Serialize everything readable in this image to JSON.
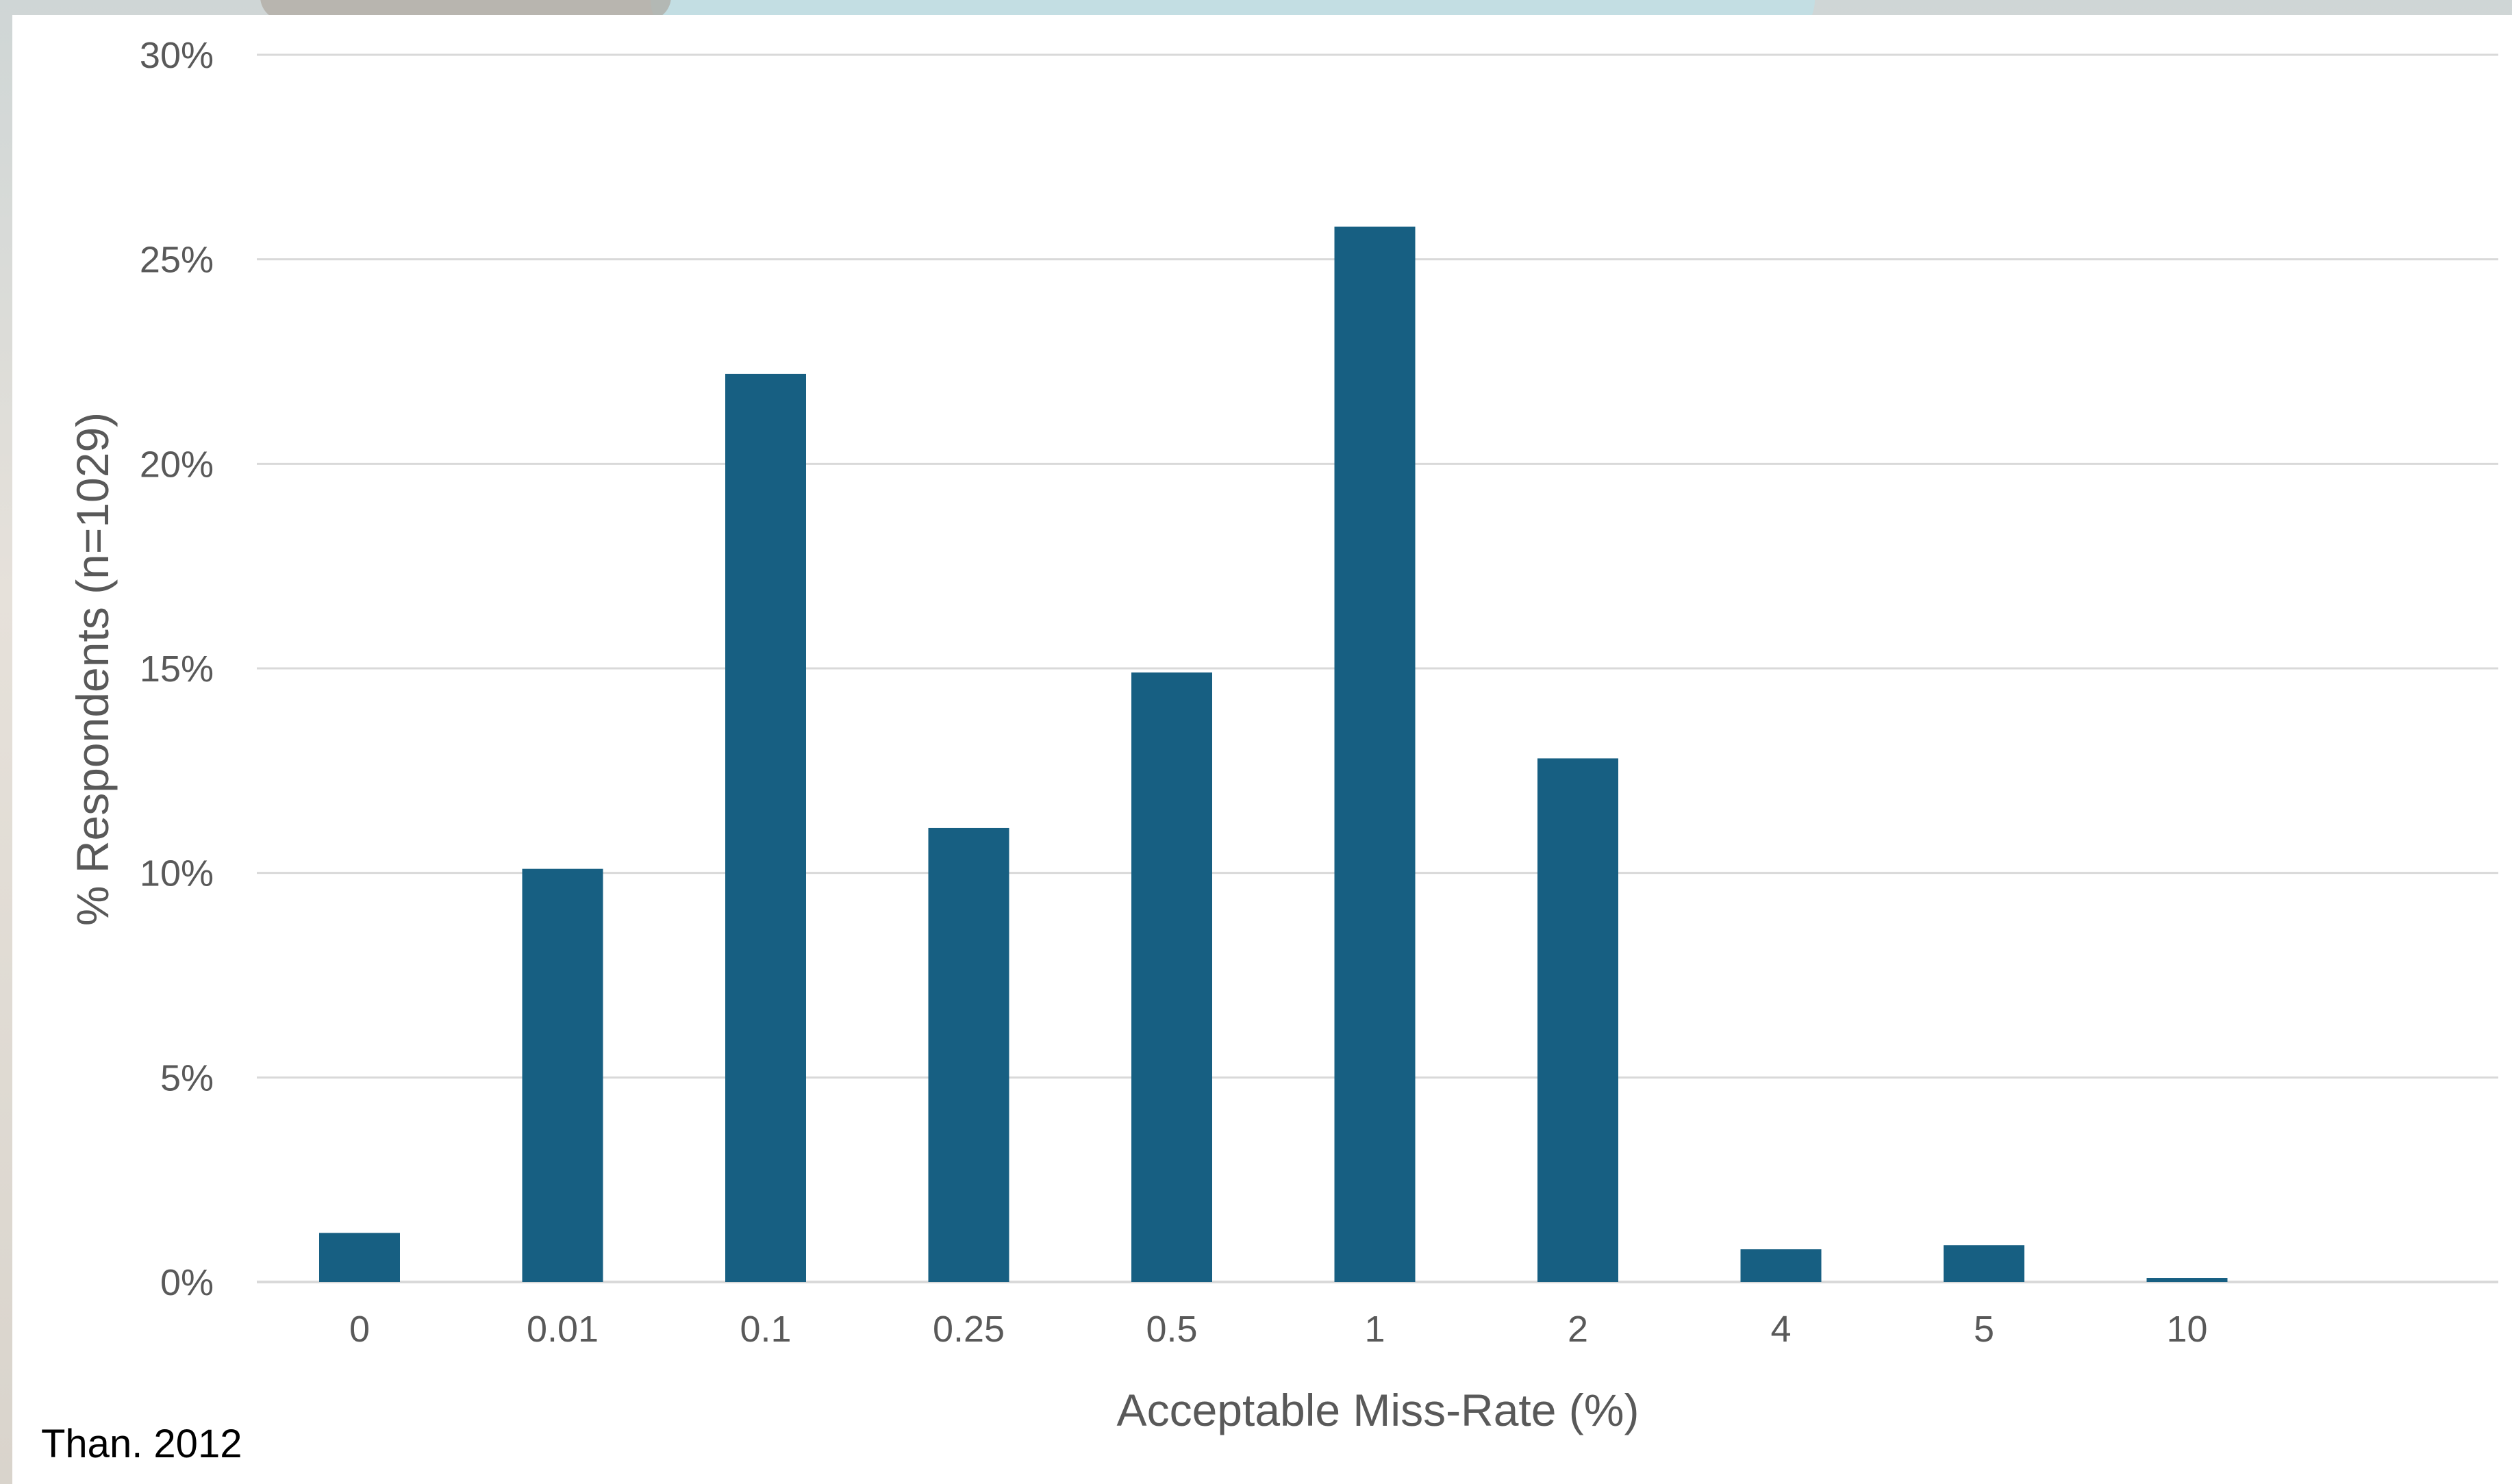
{
  "source_note": "Than. 2012",
  "colors": {
    "bar": "#175F82",
    "gridline": "#d9d9d9",
    "tick_text": "#595959"
  },
  "chart_data": {
    "type": "bar",
    "categories": [
      "0",
      "0.01",
      "0.1",
      "0.25",
      "0.5",
      "1",
      "2",
      "4",
      "5",
      "10"
    ],
    "series": [
      {
        "values": [
          1.2,
          10.1,
          22.2,
          11.1,
          14.9,
          25.8,
          12.8,
          0.8,
          0.9,
          0.1
        ]
      }
    ],
    "xlabel": "Acceptable Miss-Rate (%)",
    "ylabel": "% Respondents (n=1029)",
    "ylim": [
      0,
      30
    ],
    "yticks": [
      0,
      5,
      10,
      15,
      20,
      25,
      30
    ],
    "ytick_labels": [
      "0%",
      "5%",
      "10%",
      "15%",
      "20%",
      "25%",
      "30%"
    ],
    "grid": true,
    "legend": "none"
  }
}
